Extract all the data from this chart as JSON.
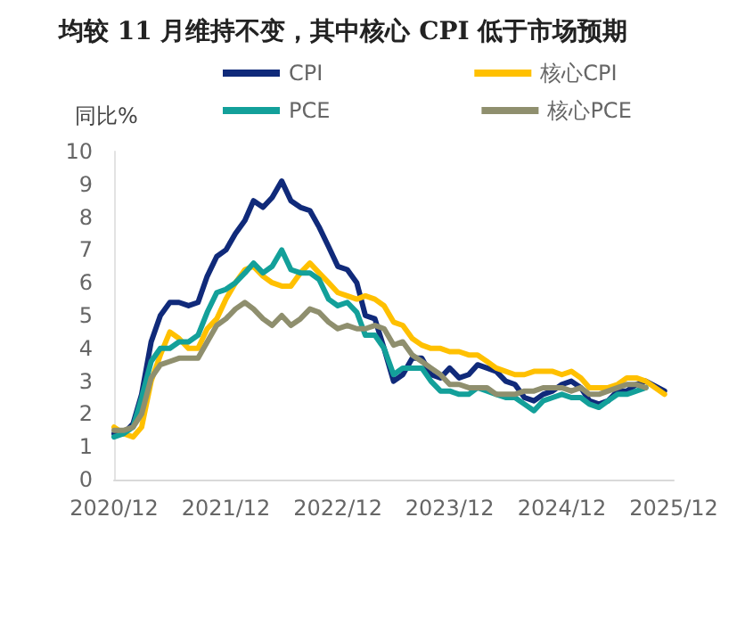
{
  "chart_data": {
    "type": "line",
    "title": "均较 11 月维持不变，其中核心 CPI 低于市场预期",
    "ylabel": "同比%",
    "x": [
      "2020-12",
      "2021-01",
      "2021-02",
      "2021-03",
      "2021-04",
      "2021-05",
      "2021-06",
      "2021-07",
      "2021-08",
      "2021-09",
      "2021-10",
      "2021-11",
      "2021-12",
      "2022-01",
      "2022-02",
      "2022-03",
      "2022-04",
      "2022-05",
      "2022-06",
      "2022-07",
      "2022-08",
      "2022-09",
      "2022-10",
      "2022-11",
      "2022-12",
      "2023-01",
      "2023-02",
      "2023-03",
      "2023-04",
      "2023-05",
      "2023-06",
      "2023-07",
      "2023-08",
      "2023-09",
      "2023-10",
      "2023-11",
      "2023-12",
      "2024-01",
      "2024-02",
      "2024-03",
      "2024-04",
      "2024-05",
      "2024-06",
      "2024-07",
      "2024-08",
      "2024-09",
      "2024-10",
      "2024-11",
      "2024-12",
      "2025-01",
      "2025-02",
      "2025-03",
      "2025-04",
      "2025-05",
      "2025-06",
      "2025-07",
      "2025-08",
      "2025-09",
      "2025-10",
      "2025-11"
    ],
    "series": [
      {
        "name": "CPI",
        "color": "#102a7a",
        "values": [
          1.4,
          1.4,
          1.7,
          2.6,
          4.2,
          5.0,
          5.4,
          5.4,
          5.3,
          5.4,
          6.2,
          6.8,
          7.0,
          7.5,
          7.9,
          8.5,
          8.3,
          8.6,
          9.1,
          8.5,
          8.3,
          8.2,
          7.7,
          7.1,
          6.5,
          6.4,
          6.0,
          5.0,
          4.9,
          4.0,
          3.0,
          3.2,
          3.7,
          3.7,
          3.2,
          3.1,
          3.4,
          3.1,
          3.2,
          3.5,
          3.4,
          3.3,
          3.0,
          2.9,
          2.5,
          2.4,
          2.6,
          2.7,
          2.9,
          3.0,
          2.8,
          2.4,
          2.3,
          2.4,
          2.7,
          2.7,
          2.9,
          3.0,
          null,
          2.7
        ]
      },
      {
        "name": "核心CPI",
        "color": "#ffc000",
        "values": [
          1.6,
          1.4,
          1.3,
          1.6,
          3.0,
          3.8,
          4.5,
          4.3,
          4.0,
          4.0,
          4.6,
          4.9,
          5.5,
          6.0,
          6.4,
          6.5,
          6.2,
          6.0,
          5.9,
          5.9,
          6.3,
          6.6,
          6.3,
          6.0,
          5.7,
          5.6,
          5.5,
          5.6,
          5.5,
          5.3,
          4.8,
          4.7,
          4.3,
          4.1,
          4.0,
          4.0,
          3.9,
          3.9,
          3.8,
          3.8,
          3.6,
          3.4,
          3.3,
          3.2,
          3.2,
          3.3,
          3.3,
          3.3,
          3.2,
          3.3,
          3.1,
          2.8,
          2.8,
          2.8,
          2.9,
          3.1,
          3.1,
          3.0,
          null,
          2.6
        ]
      },
      {
        "name": "PCE",
        "color": "#13a09a",
        "values": [
          1.3,
          1.4,
          1.6,
          2.5,
          3.6,
          4.0,
          4.0,
          4.2,
          4.2,
          4.4,
          5.1,
          5.7,
          5.8,
          6.0,
          6.3,
          6.6,
          6.3,
          6.5,
          7.0,
          6.4,
          6.3,
          6.3,
          6.1,
          5.5,
          5.3,
          5.4,
          5.1,
          4.4,
          4.4,
          4.0,
          3.2,
          3.4,
          3.4,
          3.4,
          3.0,
          2.7,
          2.7,
          2.6,
          2.6,
          2.8,
          2.7,
          2.6,
          2.5,
          2.5,
          2.3,
          2.1,
          2.4,
          2.5,
          2.6,
          2.5,
          2.5,
          2.3,
          2.2,
          2.4,
          2.6,
          2.6,
          2.7,
          2.8,
          null,
          null
        ]
      },
      {
        "name": "核心PCE",
        "color": "#8f8f6e",
        "values": [
          1.5,
          1.5,
          1.6,
          2.0,
          3.1,
          3.5,
          3.6,
          3.7,
          3.7,
          3.7,
          4.2,
          4.7,
          4.9,
          5.2,
          5.4,
          5.2,
          4.9,
          4.7,
          5.0,
          4.7,
          4.9,
          5.2,
          5.1,
          4.8,
          4.6,
          4.7,
          4.6,
          4.6,
          4.7,
          4.6,
          4.1,
          4.2,
          3.8,
          3.6,
          3.4,
          3.2,
          2.9,
          2.9,
          2.8,
          2.8,
          2.8,
          2.6,
          2.6,
          2.6,
          2.7,
          2.7,
          2.8,
          2.8,
          2.8,
          2.7,
          2.8,
          2.6,
          2.6,
          2.7,
          2.8,
          2.9,
          2.9,
          2.8,
          null,
          null
        ]
      }
    ],
    "xlim": [
      "2020-12",
      "2025-12"
    ],
    "xticks": [
      {
        "value": "2020-12",
        "label": "2020/12"
      },
      {
        "value": "2021-12",
        "label": "2021/12"
      },
      {
        "value": "2022-12",
        "label": "2022/12"
      },
      {
        "value": "2023-12",
        "label": "2023/12"
      },
      {
        "value": "2024-12",
        "label": "2024/12"
      },
      {
        "value": "2025-12",
        "label": "2025/12"
      }
    ],
    "ylim": [
      0,
      10
    ],
    "yticks": [
      0,
      1,
      2,
      3,
      4,
      5,
      6,
      7,
      8,
      9,
      10
    ],
    "grid": false,
    "legend": "top",
    "marker": "none",
    "line_style": "solid"
  }
}
